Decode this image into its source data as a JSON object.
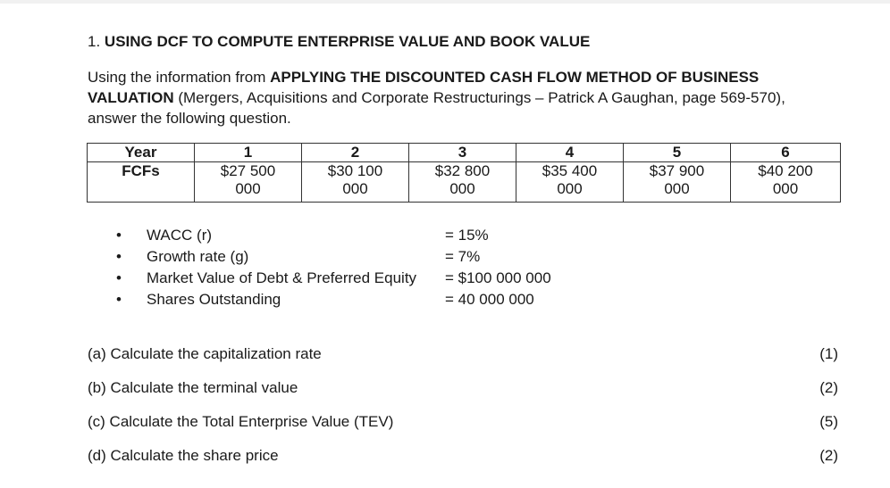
{
  "heading": {
    "number": "1.",
    "title": "USING DCF TO COMPUTE ENTERPRISE VALUE AND BOOK VALUE"
  },
  "intro": {
    "prefix": "Using the information from ",
    "bold": "APPLYING THE DISCOUNTED CASH FLOW METHOD OF BUSINESS VALUATION",
    "suffix": " (Mergers, Acquisitions and Corporate Restructurings – Patrick A Gaughan, page 569-570), answer the following question."
  },
  "table": {
    "header": [
      "Year",
      "1",
      "2",
      "3",
      "4",
      "5",
      "6"
    ],
    "row_label": "FCFs",
    "values": [
      [
        "$27 500",
        "000"
      ],
      [
        "$30 100",
        "000"
      ],
      [
        "$32 800",
        "000"
      ],
      [
        "$35 400",
        "000"
      ],
      [
        "$37 900",
        "000"
      ],
      [
        "$40 200",
        "000"
      ]
    ]
  },
  "params": [
    {
      "label": "WACC (r)",
      "value": "= 15%"
    },
    {
      "label": "Growth rate (g)",
      "value": "= 7%"
    },
    {
      "label": "Market Value of Debt & Preferred Equity",
      "value": "= $100 000 000"
    },
    {
      "label": "Shares Outstanding",
      "value": "= 40 000 000"
    }
  ],
  "questions": [
    {
      "text": "(a) Calculate the capitalization rate",
      "marks": "(1)"
    },
    {
      "text": "(b) Calculate the terminal value",
      "marks": "(2)"
    },
    {
      "text": "(c) Calculate the Total Enterprise Value (TEV)",
      "marks": "(5)"
    },
    {
      "text": "(d) Calculate the share price",
      "marks": "(2)"
    }
  ]
}
